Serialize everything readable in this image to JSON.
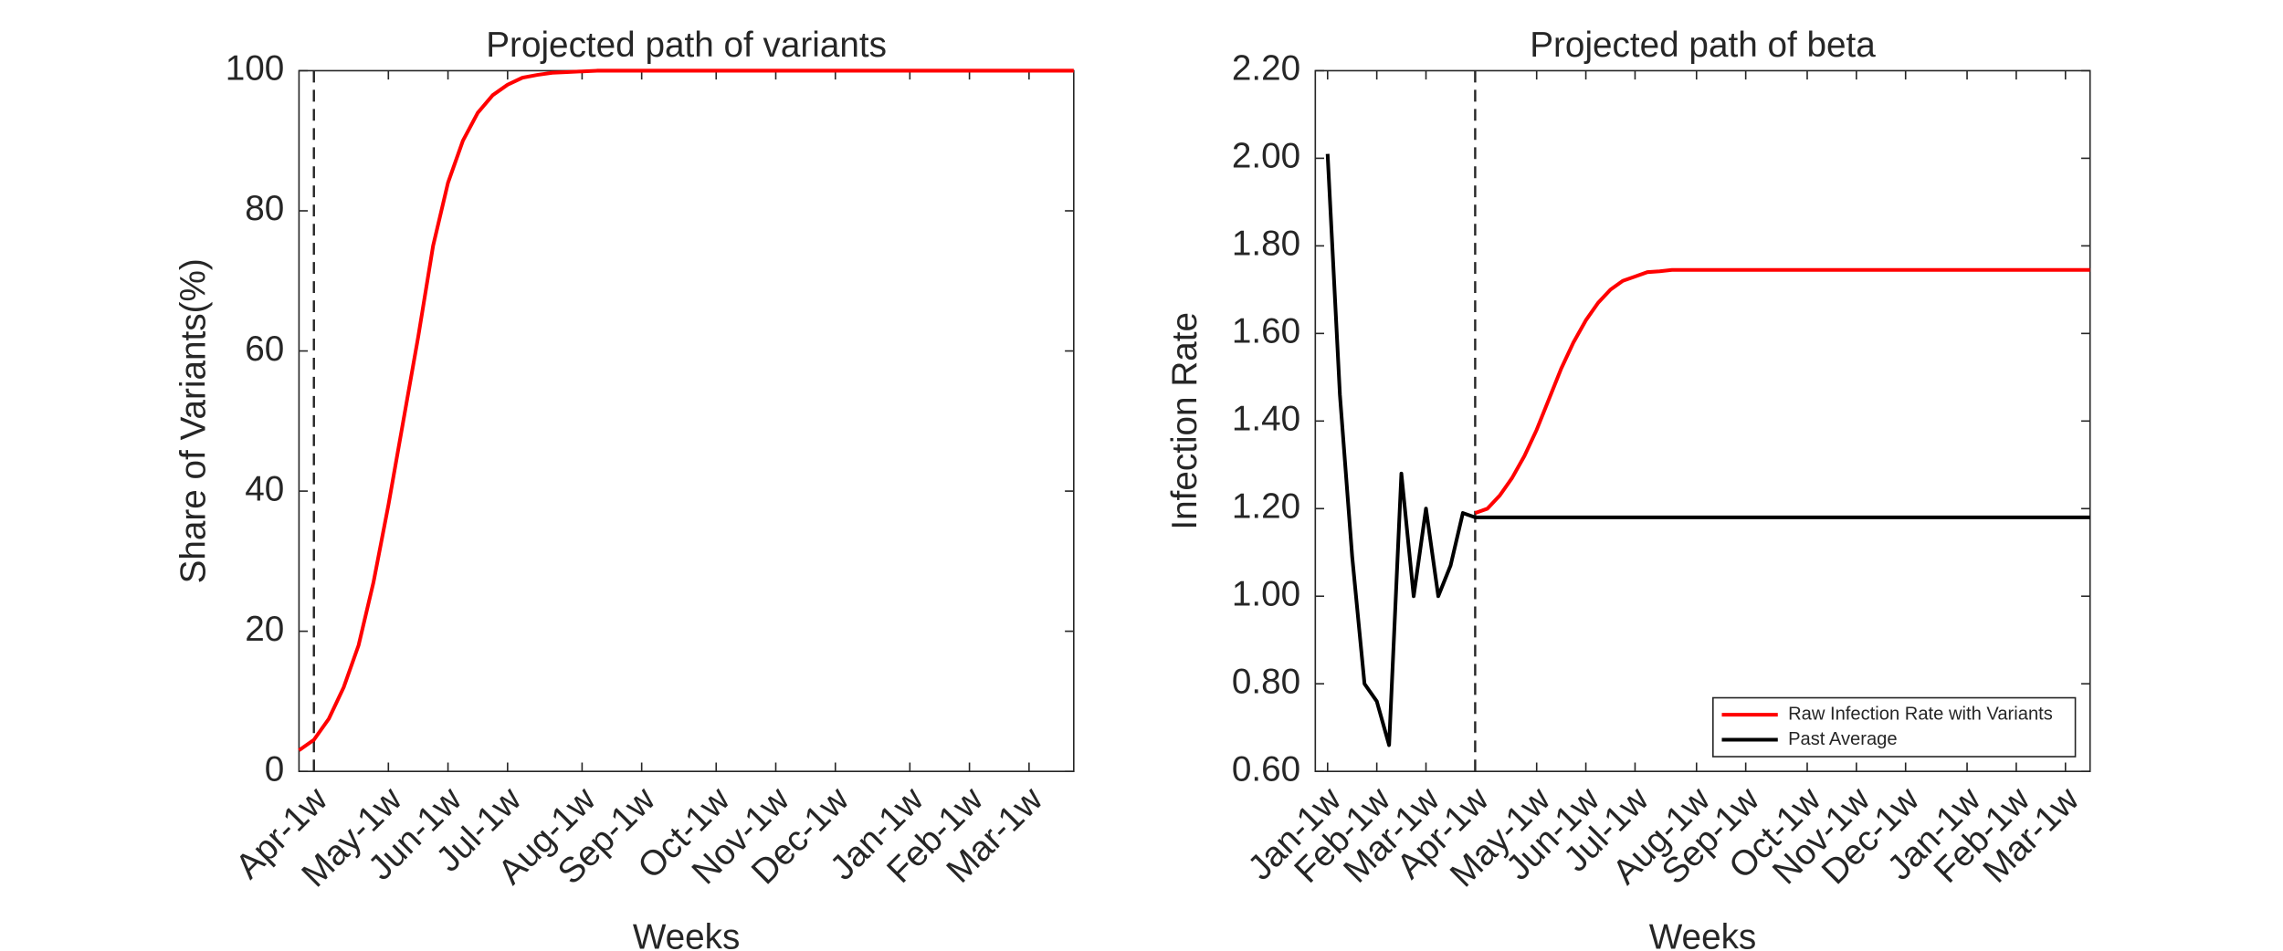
{
  "chart_data": [
    {
      "type": "line",
      "title": "Projected path of variants",
      "x_label": "Weeks",
      "y_label": "Share of Variants(%)",
      "x": [
        0,
        1,
        2,
        3,
        4,
        5,
        6,
        7,
        8,
        9,
        10,
        11,
        12,
        13,
        14,
        15,
        16,
        17,
        18,
        19,
        20,
        52
      ],
      "values": [
        3,
        4.5,
        7.5,
        12,
        18,
        27,
        38,
        50,
        62,
        75,
        84,
        90,
        94,
        96.5,
        98,
        99,
        99.4,
        99.7,
        99.8,
        99.9,
        100,
        100
      ],
      "color": "#ff0000",
      "xlim": [
        0,
        52
      ],
      "ylim": [
        0,
        100
      ],
      "xticks": [
        {
          "value": 1,
          "label": "Apr-1w"
        },
        {
          "value": 6,
          "label": "May-1w"
        },
        {
          "value": 10,
          "label": "Jun-1w"
        },
        {
          "value": 14,
          "label": "Jul-1w"
        },
        {
          "value": 19,
          "label": "Aug-1w"
        },
        {
          "value": 23,
          "label": "Sep-1w"
        },
        {
          "value": 28,
          "label": "Oct-1w"
        },
        {
          "value": 32,
          "label": "Nov-1w"
        },
        {
          "value": 36,
          "label": "Dec-1w"
        },
        {
          "value": 41,
          "label": "Jan-1w"
        },
        {
          "value": 45,
          "label": "Feb-1w"
        },
        {
          "value": 49,
          "label": "Mar-1w"
        }
      ],
      "yticks": [
        0,
        20,
        40,
        60,
        80,
        100
      ],
      "vline": 1
    },
    {
      "type": "line",
      "title": "Projected path of beta",
      "x_label": "Weeks",
      "y_label": "Infection Rate",
      "series": [
        {
          "name": "Raw Infection Rate with Variants",
          "color": "#ff0000",
          "x": [
            12,
            13,
            14,
            15,
            16,
            17,
            18,
            19,
            20,
            21,
            22,
            23,
            24,
            25,
            26,
            27,
            28,
            62
          ],
          "values": [
            1.19,
            1.2,
            1.23,
            1.27,
            1.32,
            1.38,
            1.45,
            1.52,
            1.58,
            1.63,
            1.67,
            1.7,
            1.72,
            1.73,
            1.74,
            1.742,
            1.745,
            1.745
          ]
        },
        {
          "name": "Past Average",
          "color": "#000000",
          "x": [
            0,
            1,
            2,
            3,
            4,
            5,
            6,
            7,
            8,
            9,
            10,
            11,
            12,
            62
          ],
          "values": [
            2.01,
            1.46,
            1.09,
            0.8,
            0.76,
            0.66,
            1.28,
            1.0,
            1.2,
            1.0,
            1.07,
            1.19,
            1.18,
            1.18
          ]
        }
      ],
      "xlim": [
        -1,
        62
      ],
      "ylim": [
        0.6,
        2.2
      ],
      "xticks": [
        {
          "value": 0,
          "label": "Jan-1w"
        },
        {
          "value": 4,
          "label": "Feb-1w"
        },
        {
          "value": 8,
          "label": "Mar-1w"
        },
        {
          "value": 12,
          "label": "Apr-1w"
        },
        {
          "value": 17,
          "label": "May-1w"
        },
        {
          "value": 21,
          "label": "Jun-1w"
        },
        {
          "value": 25,
          "label": "Jul-1w"
        },
        {
          "value": 30,
          "label": "Aug-1w"
        },
        {
          "value": 34,
          "label": "Sep-1w"
        },
        {
          "value": 39,
          "label": "Oct-1w"
        },
        {
          "value": 43,
          "label": "Nov-1w"
        },
        {
          "value": 47,
          "label": "Dec-1w"
        },
        {
          "value": 52,
          "label": "Jan-1w"
        },
        {
          "value": 56,
          "label": "Feb-1w"
        },
        {
          "value": 60,
          "label": "Mar-1w"
        }
      ],
      "yticks": [
        {
          "value": 0.6,
          "label": "0.60"
        },
        {
          "value": 0.8,
          "label": "0.80"
        },
        {
          "value": 1.0,
          "label": "1.00"
        },
        {
          "value": 1.2,
          "label": "1.20"
        },
        {
          "value": 1.4,
          "label": "1.40"
        },
        {
          "value": 1.6,
          "label": "1.60"
        },
        {
          "value": 1.8,
          "label": "1.80"
        },
        {
          "value": 2.0,
          "label": "2.00"
        },
        {
          "value": 2.2,
          "label": "2.20"
        }
      ],
      "vline": 12,
      "legend": "lower right"
    }
  ]
}
